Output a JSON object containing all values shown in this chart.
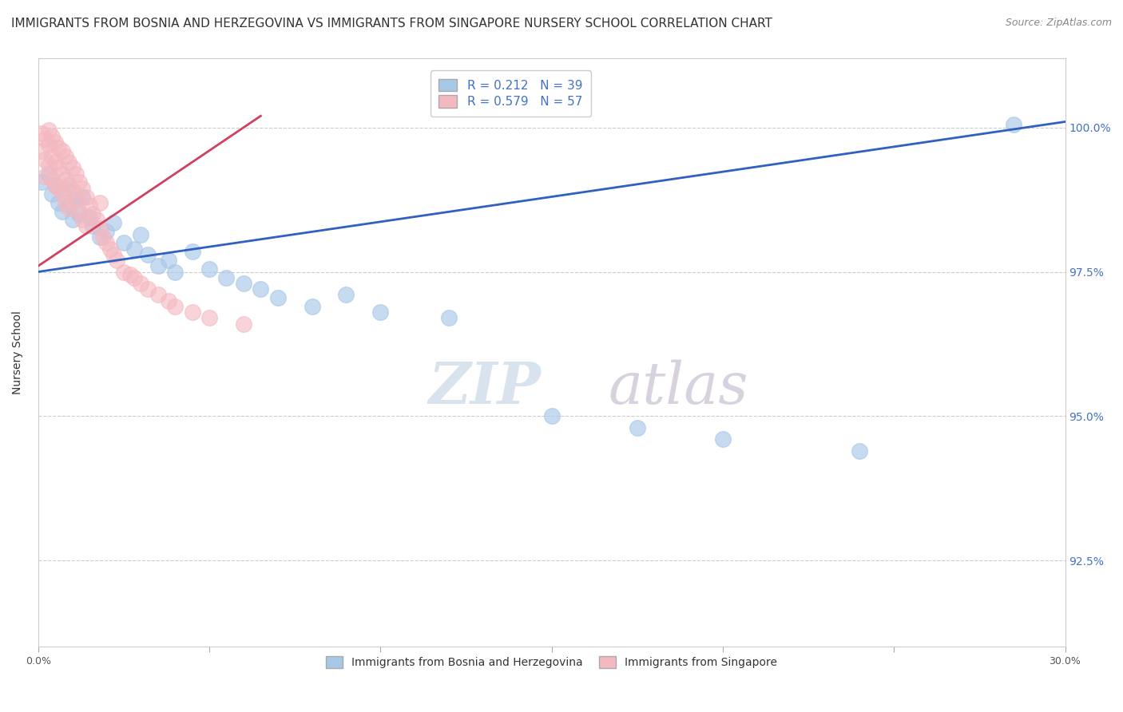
{
  "title": "IMMIGRANTS FROM BOSNIA AND HERZEGOVINA VS IMMIGRANTS FROM SINGAPORE NURSERY SCHOOL CORRELATION CHART",
  "source": "Source: ZipAtlas.com",
  "xlabel_legend1": "Immigrants from Bosnia and Herzegovina",
  "xlabel_legend2": "Immigrants from Singapore",
  "ylabel": "Nursery School",
  "xlim": [
    0.0,
    0.3
  ],
  "ylim": [
    0.91,
    1.012
  ],
  "xticks": [
    0.0,
    0.05,
    0.1,
    0.15,
    0.2,
    0.25,
    0.3
  ],
  "xticklabels": [
    "0.0%",
    "",
    "",
    "",
    "",
    "",
    "30.0%"
  ],
  "yticks": [
    0.925,
    0.95,
    0.975,
    1.0
  ],
  "yticklabels": [
    "92.5%",
    "95.0%",
    "97.5%",
    "100.0%"
  ],
  "R_blue": 0.212,
  "N_blue": 39,
  "R_pink": 0.579,
  "N_pink": 57,
  "blue_color": "#a8c8e8",
  "pink_color": "#f4b8c0",
  "line_blue": "#3060c0",
  "line_pink": "#d04060",
  "blue_line_x0": 0.0,
  "blue_line_x1": 0.3,
  "blue_line_y0": 0.975,
  "blue_line_y1": 1.001,
  "pink_line_x0": 0.0,
  "pink_line_x1": 0.065,
  "pink_line_y0": 0.976,
  "pink_line_y1": 1.002,
  "blue_scatter_x": [
    0.001,
    0.003,
    0.004,
    0.005,
    0.006,
    0.007,
    0.008,
    0.009,
    0.01,
    0.011,
    0.012,
    0.013,
    0.015,
    0.016,
    0.018,
    0.02,
    0.022,
    0.025,
    0.028,
    0.03,
    0.032,
    0.035,
    0.038,
    0.04,
    0.045,
    0.05,
    0.055,
    0.06,
    0.065,
    0.07,
    0.08,
    0.09,
    0.1,
    0.12,
    0.15,
    0.175,
    0.2,
    0.24,
    0.285
  ],
  "blue_scatter_y": [
    0.9905,
    0.992,
    0.9885,
    0.99,
    0.987,
    0.9855,
    0.9895,
    0.9865,
    0.984,
    0.9875,
    0.985,
    0.988,
    0.9845,
    0.983,
    0.981,
    0.982,
    0.9835,
    0.98,
    0.979,
    0.9815,
    0.978,
    0.976,
    0.977,
    0.975,
    0.9785,
    0.9755,
    0.974,
    0.973,
    0.972,
    0.9705,
    0.969,
    0.971,
    0.968,
    0.967,
    0.95,
    0.948,
    0.946,
    0.944,
    1.0005
  ],
  "pink_scatter_x": [
    0.001,
    0.001,
    0.002,
    0.002,
    0.002,
    0.003,
    0.003,
    0.003,
    0.004,
    0.004,
    0.004,
    0.005,
    0.005,
    0.005,
    0.006,
    0.006,
    0.006,
    0.007,
    0.007,
    0.007,
    0.008,
    0.008,
    0.008,
    0.009,
    0.009,
    0.009,
    0.01,
    0.01,
    0.011,
    0.011,
    0.012,
    0.012,
    0.013,
    0.013,
    0.014,
    0.014,
    0.015,
    0.016,
    0.017,
    0.018,
    0.018,
    0.019,
    0.02,
    0.021,
    0.022,
    0.023,
    0.025,
    0.027,
    0.028,
    0.03,
    0.032,
    0.035,
    0.038,
    0.04,
    0.045,
    0.05,
    0.06
  ],
  "pink_scatter_y": [
    0.999,
    0.996,
    0.998,
    0.9945,
    0.9915,
    0.9995,
    0.997,
    0.9935,
    0.9985,
    0.995,
    0.991,
    0.9975,
    0.994,
    0.99,
    0.9965,
    0.993,
    0.9895,
    0.996,
    0.992,
    0.9885,
    0.995,
    0.991,
    0.987,
    0.994,
    0.99,
    0.986,
    0.993,
    0.989,
    0.992,
    0.9875,
    0.9905,
    0.9855,
    0.9895,
    0.984,
    0.988,
    0.983,
    0.9865,
    0.985,
    0.984,
    0.9825,
    0.987,
    0.981,
    0.98,
    0.979,
    0.978,
    0.977,
    0.975,
    0.9745,
    0.974,
    0.973,
    0.972,
    0.971,
    0.97,
    0.969,
    0.968,
    0.967,
    0.966
  ],
  "background_color": "#ffffff",
  "grid_color": "#cccccc",
  "title_fontsize": 11,
  "axis_label_fontsize": 10,
  "tick_fontsize": 9,
  "legend_fontsize": 11,
  "watermark_text": "ZIPatlas",
  "watermark_zip_color": "#d0dce8",
  "watermark_atlas_color": "#c8b8d0"
}
